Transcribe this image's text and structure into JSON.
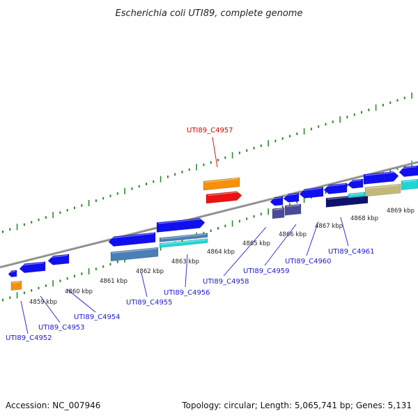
{
  "title": "Escherichia coli UTI89, complete genome",
  "footer": {
    "accession": "Accession: NC_007946",
    "summary": "Topology: circular; Length: 5,065,741 bp; Genes: 5,131"
  },
  "ruler_labels": [
    "4859 kbp",
    "4860 kbp",
    "4861 kbp",
    "4862 kbp",
    "4863 kbp",
    "4864 kbp",
    "4865 kbp",
    "4866 kbp",
    "4867 kbp",
    "4868 kbp",
    "4869 kbp"
  ],
  "gene_labels": [
    {
      "text": "UTI89_C4952",
      "highlight": false
    },
    {
      "text": "UTI89_C4953",
      "highlight": false
    },
    {
      "text": "UTI89_C4954",
      "highlight": false
    },
    {
      "text": "UTI89_C4955",
      "highlight": false
    },
    {
      "text": "UTI89_C4956",
      "highlight": false
    },
    {
      "text": "UTI89_C4957",
      "highlight": true
    },
    {
      "text": "UTI89_C4958",
      "highlight": false
    },
    {
      "text": "UTI89_C4959",
      "highlight": false
    },
    {
      "text": "UTI89_C4960",
      "highlight": false
    },
    {
      "text": "UTI89_C4961",
      "highlight": false
    }
  ],
  "colors": {
    "backbone": "#8a8a8a",
    "tick": "#2a8a2a",
    "gene_blue": "#1010ee",
    "gene_orange": "#f5900a",
    "gene_red": "#ee1111",
    "gene_steel": "#4a7fb5",
    "gene_cyan": "#1fd6d6",
    "gene_purple": "#4a4a9a",
    "gene_navy": "#10106e",
    "gene_khaki": "#c2b87a",
    "label_line_blue": "#1a1acc",
    "label_line_red": "#cc0000"
  }
}
